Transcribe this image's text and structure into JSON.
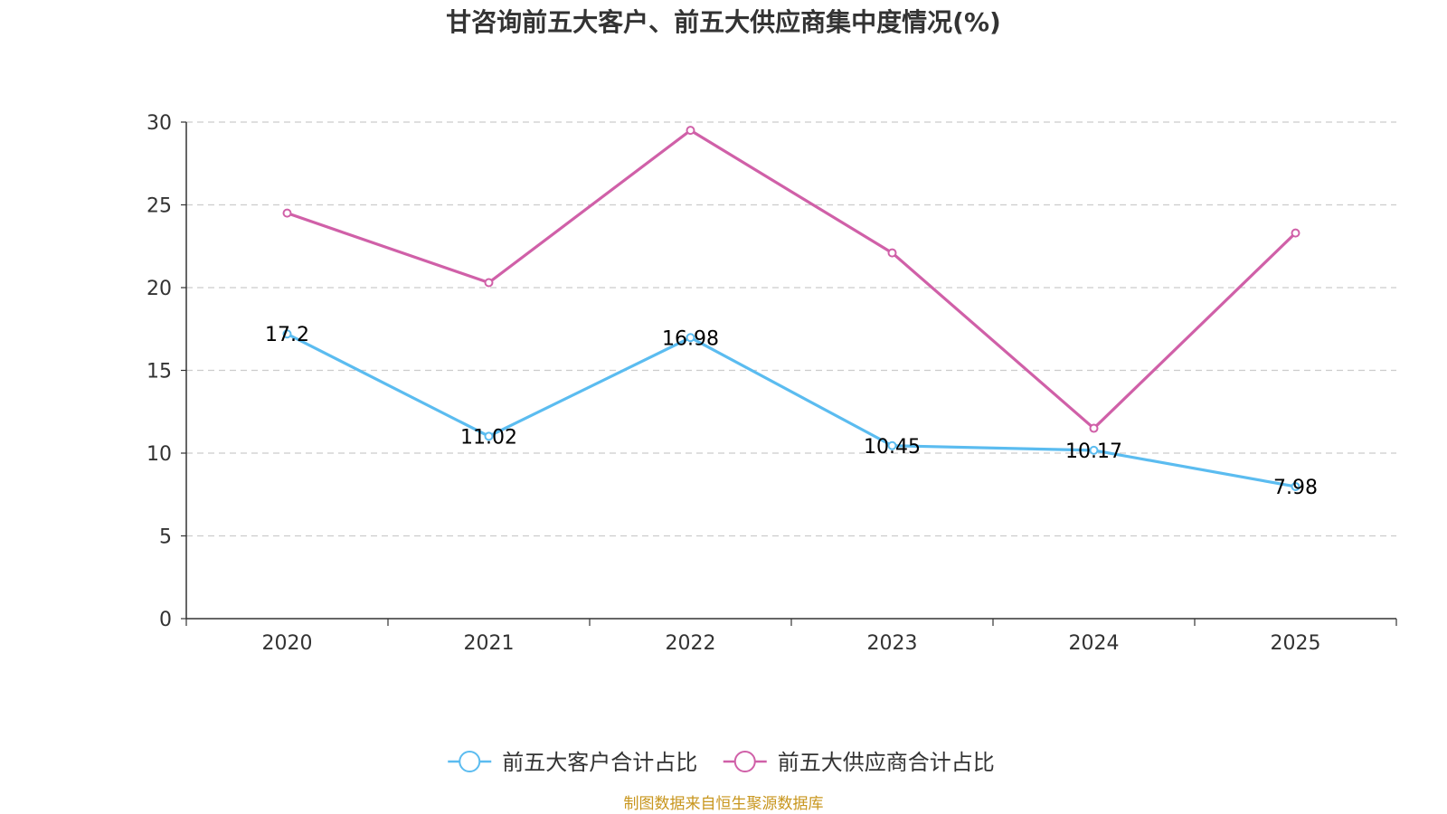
{
  "chart_data": {
    "type": "line",
    "title": "甘咨询前五大客户、前五大供应商集中度情况(%)",
    "categories": [
      "2020",
      "2021",
      "2022",
      "2023",
      "2024",
      "2025"
    ],
    "ylim": [
      0,
      30
    ],
    "yticks": [
      0,
      5,
      10,
      15,
      20,
      25,
      30
    ],
    "grid": true,
    "legend_position": "bottom-center",
    "series": [
      {
        "name": "前五大客户合计占比",
        "color": "#5bbcf0",
        "values": [
          17.2,
          11.02,
          16.98,
          10.45,
          10.17,
          7.98
        ],
        "labels": [
          "17.2",
          "11.02",
          "16.98",
          "10.45",
          "10.17",
          "7.98"
        ]
      },
      {
        "name": "前五大供应商合计占比",
        "color": "#d060a8",
        "values": [
          24.5,
          20.3,
          29.5,
          22.1,
          11.5,
          23.3
        ]
      }
    ],
    "source": "制图数据来自恒生聚源数据库",
    "source_color": "#c8961e"
  }
}
